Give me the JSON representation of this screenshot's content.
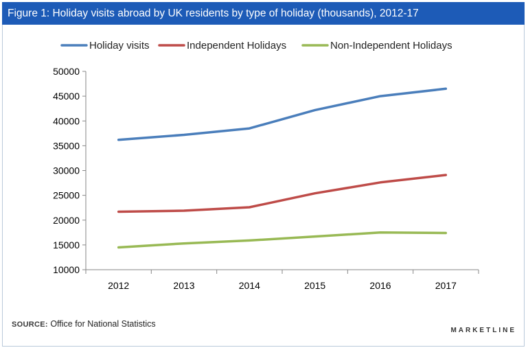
{
  "header": {
    "title": "Figure 1: Holiday visits abroad by UK residents by type of holiday (thousands), 2012-17"
  },
  "footer": {
    "source_label": "SOURCE:",
    "source_text": "Office for National Statistics",
    "brand": "MARKETLINE"
  },
  "colors": {
    "header_bg": "#1d5bb7",
    "series": [
      "#4a7ebb",
      "#be4b48",
      "#98b954"
    ]
  },
  "chart_data": {
    "type": "line",
    "title": "Figure 1: Holiday visits abroad by UK residents by type of holiday (thousands), 2012-17",
    "xlabel": "",
    "ylabel": "",
    "categories": [
      "2012",
      "2013",
      "2014",
      "2015",
      "2016",
      "2017"
    ],
    "series": [
      {
        "name": "Holiday visits",
        "values": [
          36200,
          37200,
          38500,
          42200,
          45000,
          46500
        ]
      },
      {
        "name": "Independent Holidays",
        "values": [
          21700,
          21900,
          22600,
          25400,
          27600,
          29100
        ]
      },
      {
        "name": "Non-Independent Holidays",
        "values": [
          14500,
          15300,
          15900,
          16700,
          17500,
          17400
        ]
      }
    ],
    "ylim": [
      10000,
      50000
    ],
    "yticks": [
      "10000",
      "15000",
      "20000",
      "25000",
      "30000",
      "35000",
      "40000",
      "45000",
      "50000"
    ],
    "grid": false,
    "legend_position": "top"
  }
}
